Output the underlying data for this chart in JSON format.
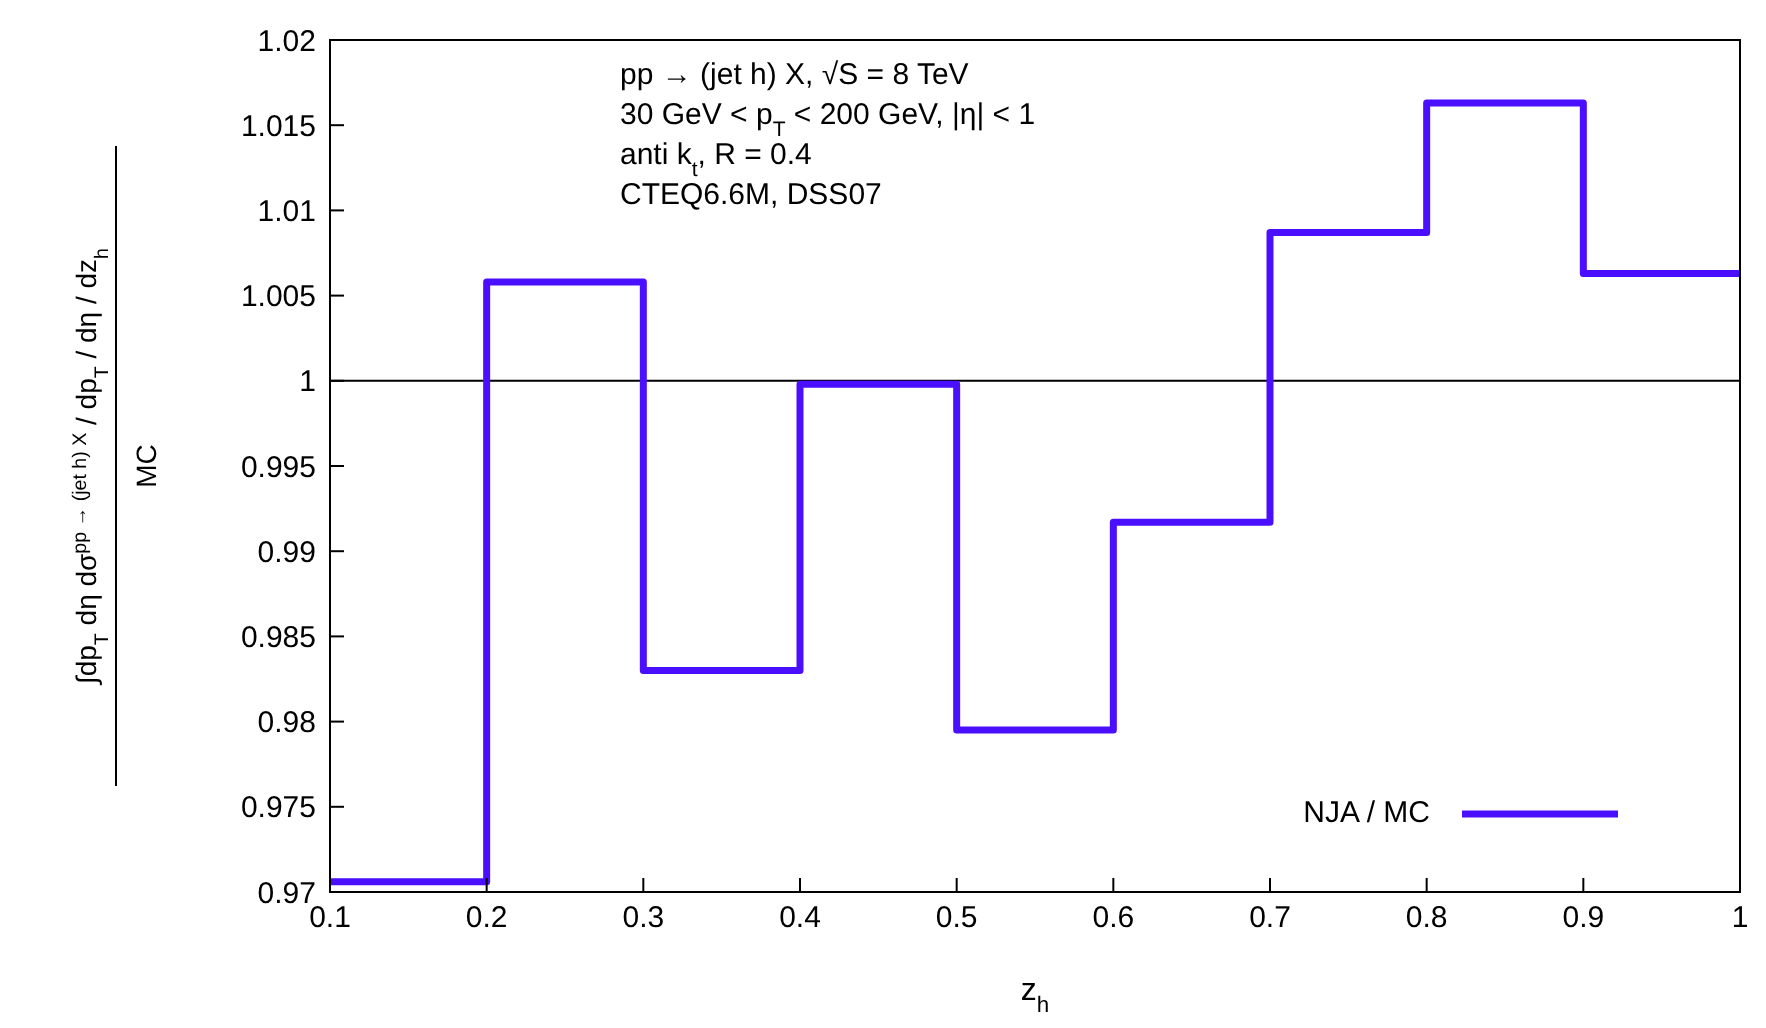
{
  "chart_data": {
    "type": "histogram",
    "xlabel": "z$_{h}$",
    "ylabel": "∫dp$_{T}$ dη dσ$^{pp → (jet h) X}$ / dp$_{T}$ / dη / dz$_{h}$\nMC",
    "annotations": [
      "pp → (jet h) X, √S = 8 TeV",
      "30 GeV < p$_{T}$ < 200 GeV, |η| < 1",
      "anti k$_{t}$, R = 0.4",
      "CTEQ6.6M, DSS07"
    ],
    "bins": [
      0.1,
      0.2,
      0.3,
      0.4,
      0.5,
      0.6,
      0.7,
      0.8,
      0.9,
      1
    ],
    "series": [
      {
        "name": "NJA / MC",
        "color": "#4b0fff",
        "values": [
          0.9706,
          1.0058,
          0.983,
          0.9998,
          0.9795,
          0.9917,
          1.0087,
          1.0163,
          1.0063
        ]
      }
    ],
    "xlim": [
      0.1,
      1
    ],
    "xticks": [
      0.1,
      0.2,
      0.3,
      0.4,
      0.5,
      0.6,
      0.7,
      0.8,
      0.9,
      1
    ],
    "ylim": [
      0.97,
      1.02
    ],
    "yticks": [
      0.97,
      0.975,
      0.98,
      0.985,
      0.99,
      0.995,
      1,
      1.005,
      1.01,
      1.015,
      1.02
    ],
    "ref_lines": [
      {
        "axis": "y",
        "value": 1,
        "color": "#000000"
      }
    ],
    "grid": false,
    "legend": "bottom right"
  }
}
